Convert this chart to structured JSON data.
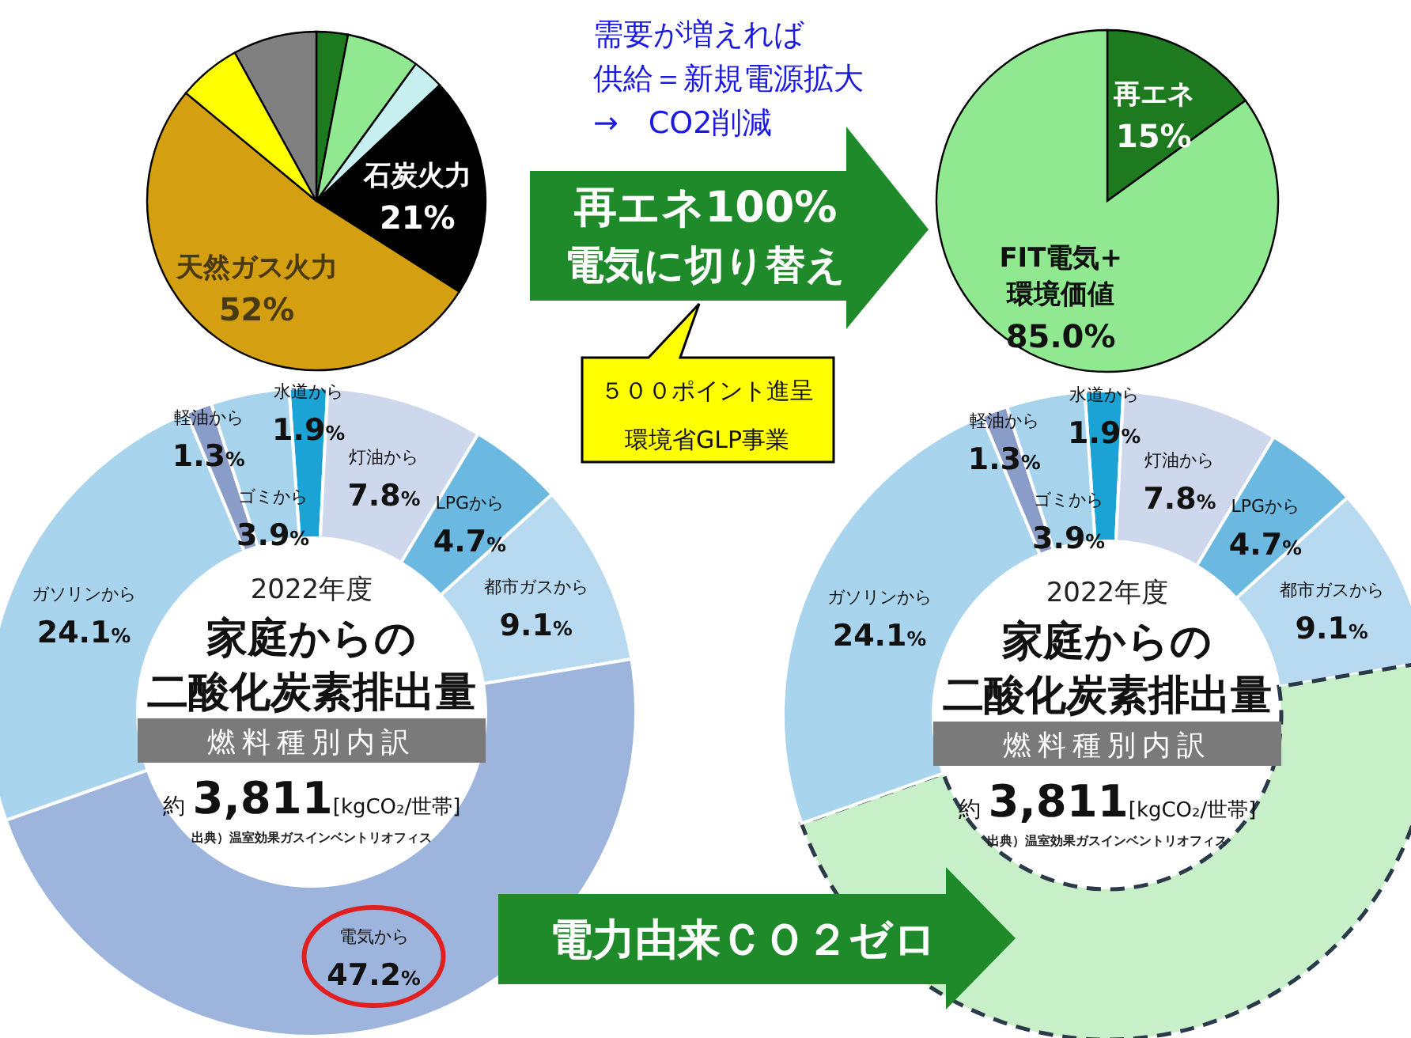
{
  "chart_data": [
    {
      "type": "pie",
      "categories": [
        null,
        null,
        null,
        "石炭火力",
        "天然ガス火力",
        null,
        null
      ],
      "values": [
        3,
        7,
        3,
        21,
        52,
        6,
        8
      ],
      "value_labels": [
        null,
        null,
        null,
        "21%",
        "52%",
        null,
        null
      ],
      "colors": [
        "#1e7a1e",
        "#90e890",
        "#c8f0f0",
        "#000000",
        "#d4a012",
        "#ffff00",
        "#808080"
      ]
    },
    {
      "type": "pie",
      "categories": [
        "再エネ",
        "FIT電気+環境価値"
      ],
      "values": [
        15,
        85.0
      ],
      "value_labels": [
        "15%",
        "85.0%"
      ],
      "colors": [
        "#1e7a1e",
        "#90e890"
      ]
    },
    {
      "type": "donut",
      "subtitle": "2022年度",
      "title": "家庭からの",
      "annotations": [
        "二酸化炭素排出量",
        "燃料種別内訳",
        "約3,811[kgCO₂/世帯]",
        "出典）温室効果ガスインベントリオフィス"
      ],
      "categories": [
        "水道から",
        "灯油から",
        "LPGから",
        "都市ガスから",
        "電気から",
        "ガソリンから",
        "軽油から",
        "ゴミから"
      ],
      "values": [
        1.9,
        7.8,
        4.7,
        9.1,
        47.2,
        24.1,
        1.3,
        3.9
      ],
      "value_labels": [
        "1.9%",
        "7.8%",
        "4.7%",
        "9.1%",
        "47.2%",
        "24.1%",
        "1.3%",
        "3.9%"
      ],
      "colors": [
        "#1ba3d6",
        "#cdd8ec",
        "#6bb8e0",
        "#b8daf0",
        "#9db5dc",
        "#a9d4ee",
        "#8a9cc8",
        "#a8d3ec"
      ]
    },
    {
      "type": "donut",
      "subtitle": "2022年度",
      "title": "家庭からの",
      "annotations": [
        "二酸化炭素排出量",
        "燃料種別内訳",
        "約3,811[kgCO₂/世帯]",
        "出典）温室効果ガスインベントリオフィス"
      ],
      "categories": [
        "水道から",
        "灯油から",
        "LPGから",
        "都市ガスから",
        null,
        "ガソリンから",
        "軽油から",
        "ゴミから"
      ],
      "values": [
        1.9,
        7.8,
        4.7,
        9.1,
        47.2,
        24.1,
        1.3,
        3.9
      ],
      "value_labels": [
        "1.9%",
        "7.8%",
        "4.7%",
        "9.1%",
        null,
        "24.1%",
        "1.3%",
        "3.9%"
      ],
      "colors": [
        "#1ba3d6",
        "#cdd8ec",
        "#6bb8e0",
        "#b8daf0",
        "#c8f0c8",
        "#a9d4ee",
        "#8a9cc8",
        "#a8d3ec"
      ]
    },
    {
      "type": "other",
      "annotations": [
        "需要が増えれば",
        "供給＝新規電源拡大",
        "→　CO2削減",
        "再エネ100%",
        "電気に切り替え",
        "５００ポイント進呈",
        "環境省GLP事業",
        "電力由来ＣＯ２ゼロ"
      ]
    }
  ]
}
